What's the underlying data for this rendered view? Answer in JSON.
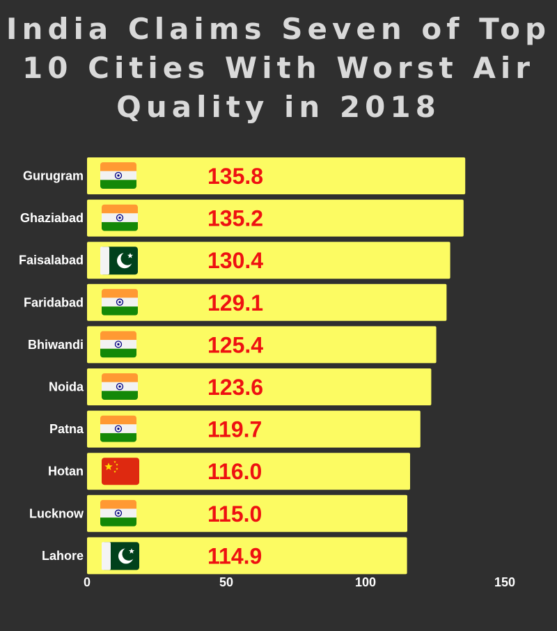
{
  "chart_data": {
    "type": "bar",
    "orientation": "horizontal",
    "title_lines": [
      "India Claims Seven of Top",
      "10 Cities With Worst Air",
      "Quality in 2018"
    ],
    "categories": [
      "Gurugram",
      "Ghaziabad",
      "Faisalabad",
      "Faridabad",
      "Bhiwandi",
      "Noida",
      "Patna",
      "Hotan",
      "Lucknow",
      "Lahore"
    ],
    "values": [
      135.8,
      135.2,
      130.4,
      129.1,
      125.4,
      123.6,
      119.7,
      116.0,
      115.0,
      114.9
    ],
    "value_labels": [
      "135.8",
      "135.2",
      "130.4",
      "129.1",
      "125.4",
      "123.6",
      "119.7",
      "116.0",
      "115.0",
      "114.9"
    ],
    "flags": [
      "india-flag",
      "india-flag",
      "pakistan-flag",
      "india-flag",
      "india-flag",
      "india-flag",
      "india-flag",
      "china-flag",
      "india-flag",
      "pakistan-flag"
    ],
    "xlim": [
      0,
      150
    ],
    "xticks": [
      0,
      50,
      100,
      150
    ],
    "xtick_labels": [
      "0",
      "50",
      "100",
      "150"
    ],
    "xlabel": "",
    "ylabel": "",
    "grid": false,
    "colors": {
      "background": "#2f2f2f",
      "bar": "#fcfb62",
      "value_text": "#ee1111",
      "title_text": "#d9d9d9",
      "label_text": "#ffffff"
    }
  }
}
